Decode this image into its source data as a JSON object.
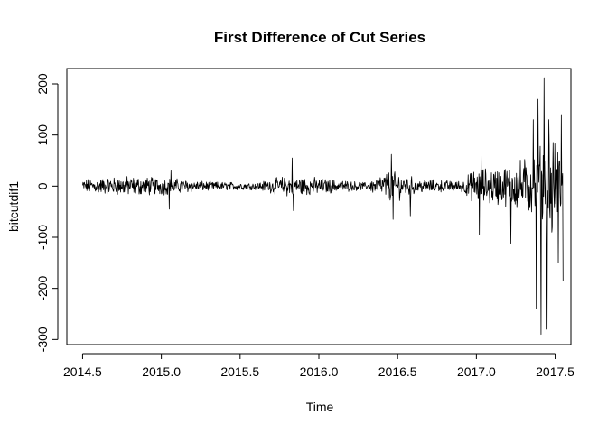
{
  "chart_data": {
    "type": "line",
    "title": "First Difference of Cut Series",
    "xlabel": "Time",
    "ylabel": "bitcutdif1",
    "xlim": [
      2014.4,
      2017.6
    ],
    "ylim": [
      -310,
      230
    ],
    "x_ticks": [
      2014.5,
      2015.0,
      2015.5,
      2016.0,
      2016.5,
      2017.0,
      2017.5
    ],
    "x_tick_labels": [
      "2014.5",
      "2015.0",
      "2015.5",
      "2016.0",
      "2016.5",
      "2017.0",
      "2017.5"
    ],
    "y_ticks": [
      -300,
      -200,
      -100,
      0,
      100,
      200
    ],
    "y_tick_labels": [
      "-300",
      "-200",
      "-100",
      "0",
      "100",
      "200"
    ],
    "grid": false,
    "series": [
      {
        "color": "#000000",
        "x_start": 2014.5,
        "x_end": 2017.55,
        "envelope": [
          {
            "x": 2014.5,
            "amp": 15
          },
          {
            "x": 2014.75,
            "amp": 22
          },
          {
            "x": 2015.0,
            "amp": 20
          },
          {
            "x": 2015.3,
            "amp": 10
          },
          {
            "x": 2015.6,
            "amp": 8
          },
          {
            "x": 2015.82,
            "amp": 25
          },
          {
            "x": 2016.0,
            "amp": 18
          },
          {
            "x": 2016.3,
            "amp": 8
          },
          {
            "x": 2016.45,
            "amp": 35
          },
          {
            "x": 2016.65,
            "amp": 15
          },
          {
            "x": 2016.9,
            "amp": 12
          },
          {
            "x": 2017.0,
            "amp": 40
          },
          {
            "x": 2017.2,
            "amp": 45
          },
          {
            "x": 2017.35,
            "amp": 70
          },
          {
            "x": 2017.45,
            "amp": 110
          },
          {
            "x": 2017.55,
            "amp": 90
          }
        ],
        "spikes": [
          {
            "x": 2015.05,
            "value": -45
          },
          {
            "x": 2015.06,
            "value": 30
          },
          {
            "x": 2015.83,
            "value": 55
          },
          {
            "x": 2015.84,
            "value": -48
          },
          {
            "x": 2016.46,
            "value": 62
          },
          {
            "x": 2016.47,
            "value": -65
          },
          {
            "x": 2016.58,
            "value": -58
          },
          {
            "x": 2017.02,
            "value": -95
          },
          {
            "x": 2017.03,
            "value": 65
          },
          {
            "x": 2017.22,
            "value": -112
          },
          {
            "x": 2017.36,
            "value": 130
          },
          {
            "x": 2017.38,
            "value": -240
          },
          {
            "x": 2017.39,
            "value": 170
          },
          {
            "x": 2017.41,
            "value": -290
          },
          {
            "x": 2017.43,
            "value": 212
          },
          {
            "x": 2017.45,
            "value": -280
          },
          {
            "x": 2017.46,
            "value": 130
          },
          {
            "x": 2017.48,
            "value": -90
          },
          {
            "x": 2017.52,
            "value": -150
          },
          {
            "x": 2017.54,
            "value": 140
          },
          {
            "x": 2017.55,
            "value": -185
          }
        ]
      }
    ]
  }
}
